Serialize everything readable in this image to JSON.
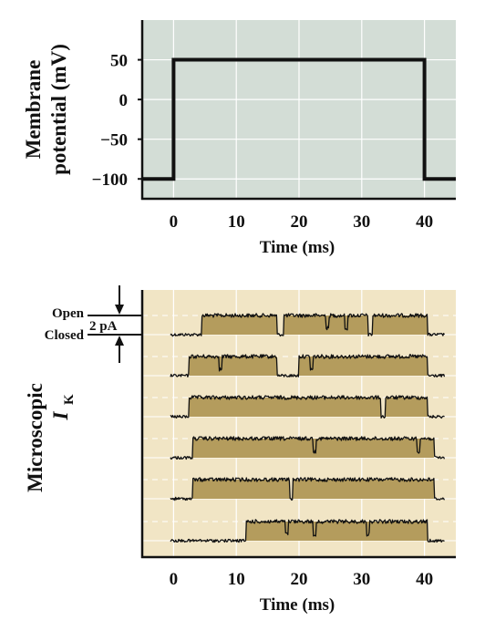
{
  "chart_data": [
    {
      "type": "line",
      "ylabel": "Membrane potential (mV)",
      "ylabel_lines": [
        "Membrane",
        "potential (mV)"
      ],
      "xlabel": "Time (ms)",
      "xlim": [
        -5,
        45
      ],
      "ylim": [
        -125,
        100
      ],
      "xticks": [
        0,
        10,
        20,
        30,
        40
      ],
      "yticks": [
        50,
        0,
        -50,
        -100
      ],
      "ytick_labels": [
        "50",
        "0",
        "−50",
        "−100"
      ],
      "grid": true,
      "background": "#d3ddd6",
      "series": [
        {
          "x": [
            -5,
            0,
            0,
            40,
            40,
            45
          ],
          "y": [
            -100,
            -100,
            50,
            50,
            -100,
            -100
          ]
        }
      ]
    },
    {
      "type": "line",
      "ylabel": "Microscopic I_K",
      "ylabel_main": "Microscopic",
      "ylabel_symbol": "I",
      "ylabel_sub": "K",
      "xlabel": "Time (ms)",
      "xlim": [
        -5,
        45
      ],
      "xticks": [
        0,
        10,
        20,
        30,
        40
      ],
      "grid": true,
      "background": "#f1e5c5",
      "fill_color": "#b49c5d",
      "scale_open_label": "Open",
      "scale_closed_label": "Closed",
      "scale_bar_label": "2 pA",
      "sweep_state": "open = 1, closed = 0",
      "sweeps": [
        {
          "open_intervals": [
            [
              4.5,
              16.5
            ],
            [
              17.5,
              31.0
            ],
            [
              31.7,
              40.5
            ]
          ],
          "brief_closures": [
            24.5,
            27.5
          ]
        },
        {
          "open_intervals": [
            [
              2.5,
              16.5
            ],
            [
              20.0,
              40.5
            ]
          ],
          "brief_closures": [
            7.5,
            22.0
          ]
        },
        {
          "open_intervals": [
            [
              2.5,
              33.0
            ],
            [
              33.8,
              40.5
            ]
          ],
          "brief_closures": []
        },
        {
          "open_intervals": [
            [
              3.0,
              41.5
            ]
          ],
          "brief_closures": [
            22.5,
            39.0
          ]
        },
        {
          "open_intervals": [
            [
              3.0,
              18.5
            ],
            [
              19.0,
              41.5
            ]
          ],
          "brief_closures": []
        },
        {
          "open_intervals": [
            [
              11.5,
              40.5
            ]
          ],
          "brief_closures": [
            18.0,
            22.5,
            31.0
          ]
        }
      ]
    }
  ],
  "colors": {
    "axis": "#111111",
    "trace": "#111111",
    "grid": "#ffffff"
  }
}
